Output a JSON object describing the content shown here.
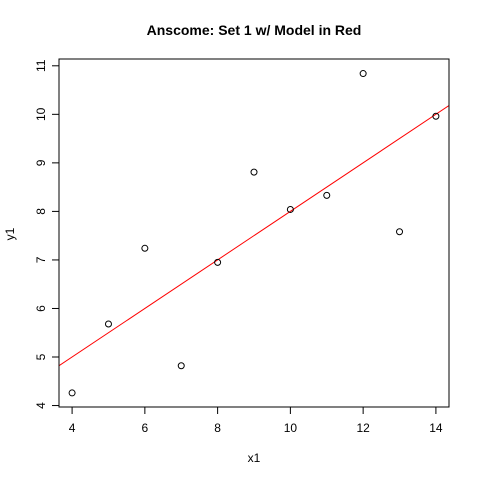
{
  "chart_data": {
    "type": "scatter",
    "title": "Anscome: Set 1 w/ Model in Red",
    "xlabel": "x1",
    "ylabel": "y1",
    "xlim": [
      3.64,
      14.36
    ],
    "ylim": [
      3.97,
      11.14
    ],
    "xticks": [
      4,
      6,
      8,
      10,
      12,
      14
    ],
    "yticks": [
      4,
      5,
      6,
      7,
      8,
      9,
      10,
      11
    ],
    "grid": false,
    "series": [
      {
        "points": [
          {
            "x": 10,
            "y": 8.04
          },
          {
            "x": 8,
            "y": 6.95
          },
          {
            "x": 13,
            "y": 7.58
          },
          {
            "x": 9,
            "y": 8.81
          },
          {
            "x": 11,
            "y": 8.33
          },
          {
            "x": 14,
            "y": 9.96
          },
          {
            "x": 6,
            "y": 7.24
          },
          {
            "x": 4,
            "y": 4.26
          },
          {
            "x": 12,
            "y": 10.84
          },
          {
            "x": 7,
            "y": 4.82
          },
          {
            "x": 5,
            "y": 5.68
          }
        ]
      }
    ],
    "model_line": {
      "intercept": 3.0001,
      "slope": 0.5001,
      "color": "#ff0000"
    },
    "point_color": "#000000"
  }
}
